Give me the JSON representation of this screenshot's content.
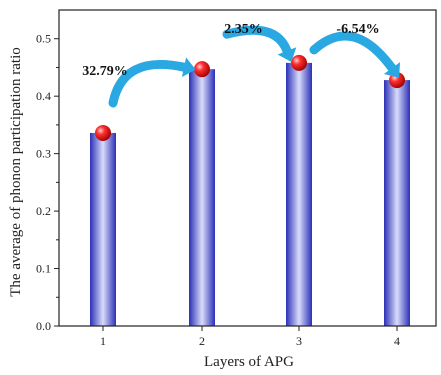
{
  "chart_data": {
    "type": "bar",
    "categories": [
      "1",
      "2",
      "3",
      "4"
    ],
    "values": [
      0.336,
      0.447,
      0.458,
      0.428
    ],
    "xlabel": "Layers of APG",
    "ylabel": "The average of phonon participation ratio",
    "ylim": [
      0.0,
      0.55
    ],
    "yticks": [
      "0.0",
      "0.1",
      "0.2",
      "0.3",
      "0.4",
      "0.5"
    ],
    "annotations": [
      {
        "text": "32.79%",
        "from": 1,
        "to": 2
      },
      {
        "text": "2.35%",
        "from": 2,
        "to": 3
      },
      {
        "text": "-6.54%",
        "from": 3,
        "to": 4
      }
    ],
    "grid": false,
    "colors": {
      "bar_center": "#d8dcfa",
      "bar_edge": "#2c2fb6",
      "marker": "#e01010",
      "arrow": "#2aa8e2",
      "axis": "#222222"
    }
  }
}
